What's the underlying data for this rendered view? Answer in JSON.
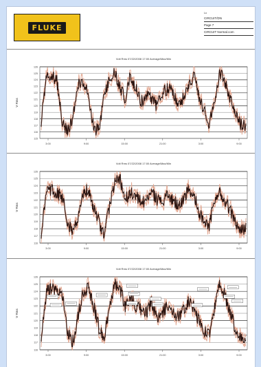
{
  "app": {
    "brand": "FLUKE",
    "accent": "#f1c21b",
    "background": "#cfe0f7"
  },
  "info_box": {
    "top_label": "Lo",
    "line1": "CIRCUIT/DN",
    "line2": "Page 7",
    "line3": "CIRCUIT  Normal.com"
  },
  "panels": [
    {
      "title": "Volt Rms  07/22/2008  17:00  Average/Max/Min",
      "y_label": "V Rms",
      "y_ticks": [
        "126",
        "125",
        "124",
        "123",
        "122",
        "121",
        "120",
        "119",
        "118",
        "117",
        "116",
        "115"
      ],
      "x_ticks": [
        "3:00",
        "9:00",
        "15:00",
        "21:00",
        "3:00",
        "9:00"
      ]
    },
    {
      "title": "Volt Rms  07/22/2008  17:00  Average/Max/Min",
      "y_label": "V Rms",
      "y_ticks": [
        "126",
        "125",
        "124",
        "123",
        "122",
        "121",
        "120",
        "119",
        "118",
        "117",
        "116"
      ],
      "x_ticks": [
        "3:00",
        "9:00",
        "15:00",
        "21:00",
        "3:00",
        "9:00"
      ]
    },
    {
      "title": "Volt Rms  07/22/2008  17:00  Average/Max/Min",
      "y_label": "V Rms",
      "y_ticks": [
        "126",
        "125",
        "124",
        "123",
        "122",
        "121",
        "120",
        "119",
        "118",
        "117",
        "116"
      ],
      "x_ticks": [
        "3:00",
        "9:00",
        "15:00",
        "21:00",
        "3:00",
        "9:00"
      ]
    }
  ],
  "colors": {
    "series_main": "#2a1410",
    "series_envelope": "#e2a58e",
    "grid": "#333333"
  }
}
